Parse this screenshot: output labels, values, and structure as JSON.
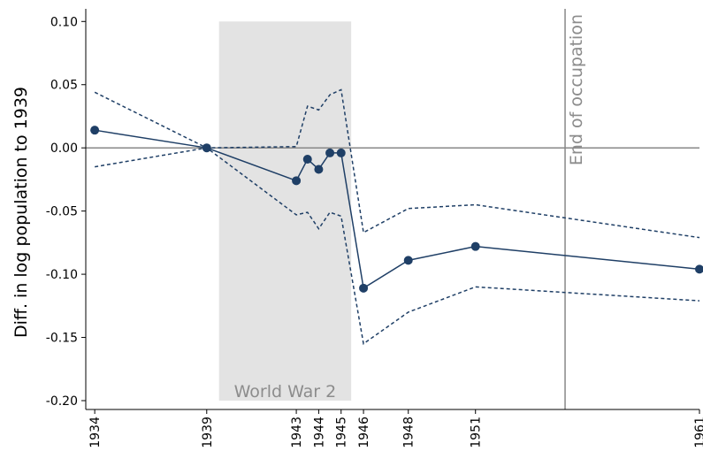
{
  "chart_data": {
    "type": "line",
    "y_label": "Diff. in log population to 1939",
    "x": [
      1934,
      1939,
      1943,
      1943.5,
      1944,
      1944.5,
      1945,
      1946,
      1948,
      1951,
      1961
    ],
    "series": [
      {
        "color": "#1f3f66",
        "values": [
          0.014,
          0,
          -0.026,
          -0.009,
          -0.017,
          -0.004,
          -0.004,
          -0.111,
          -0.089,
          -0.078,
          -0.096
        ],
        "upper": [
          0.044,
          0,
          0.001,
          0.033,
          0.03,
          0.042,
          0.046,
          -0.067,
          -0.048,
          -0.045,
          -0.071
        ],
        "lower": [
          -0.015,
          0,
          -0.053,
          -0.051,
          -0.064,
          -0.051,
          -0.054,
          -0.155,
          -0.13,
          -0.11,
          -0.121
        ]
      }
    ],
    "xlim": [
      1933.6,
      1961
    ],
    "ylim": [
      -0.207,
      0.11
    ],
    "xticks": [
      1934,
      1939,
      1943,
      1944,
      1945,
      1946,
      1948,
      1951,
      1961
    ],
    "yticks": [
      {
        "value": 0.1,
        "label": "0.10"
      },
      0.05,
      {
        "value": 0,
        "label": "0.00"
      },
      -0.05,
      {
        "value": -0.1,
        "label": "-0.10"
      },
      -0.15,
      {
        "value": -0.2,
        "label": "-0.20"
      }
    ],
    "shaded": {
      "x": [
        1939.55,
        1945.45
      ],
      "y": [
        -0.2,
        0.1
      ],
      "label": "World War 2"
    },
    "vline": {
      "x": 1955,
      "label": "End of occupation"
    }
  }
}
